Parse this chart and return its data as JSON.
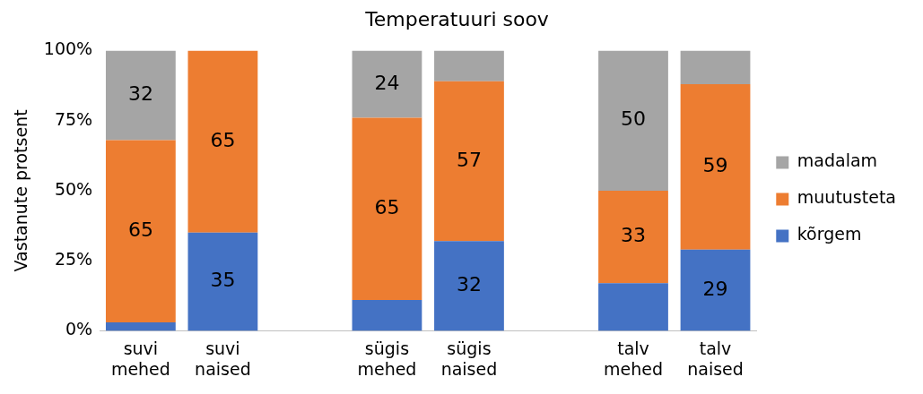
{
  "chart_data": {
    "type": "bar",
    "title": "Temperatuuri soov",
    "ylabel": "Vastanute protsent",
    "stacked": true,
    "categories": [
      "suvi mehed",
      "suvi naised",
      null,
      "sügis mehed",
      "sügis naised",
      null,
      "talv mehed",
      "talv naised"
    ],
    "series": [
      {
        "name": "kõrgem",
        "color": "#4472c4",
        "values": [
          3,
          35,
          null,
          11,
          32,
          null,
          17,
          29
        ],
        "value_labels": [
          null,
          "35",
          null,
          null,
          "32",
          null,
          null,
          "29"
        ]
      },
      {
        "name": "muutusteta",
        "color": "#ed7d31",
        "values": [
          65,
          65,
          null,
          65,
          57,
          null,
          33,
          59
        ],
        "value_labels": [
          "65",
          "65",
          null,
          "65",
          "57",
          null,
          "33",
          "59"
        ]
      },
      {
        "name": "madalam",
        "color": "#a5a5a5",
        "values": [
          32,
          0,
          null,
          24,
          11,
          null,
          50,
          12
        ],
        "value_labels": [
          "32",
          null,
          null,
          "24",
          null,
          null,
          "50",
          null
        ]
      }
    ],
    "ylim": [
      0,
      100
    ],
    "yticks": [
      {
        "value": 0,
        "label": "0%"
      },
      {
        "value": 25,
        "label": "25%"
      },
      {
        "value": 50,
        "label": "50%"
      },
      {
        "value": 75,
        "label": "75%"
      },
      {
        "value": 100,
        "label": "100%"
      }
    ],
    "grid": false,
    "legend": "right"
  }
}
